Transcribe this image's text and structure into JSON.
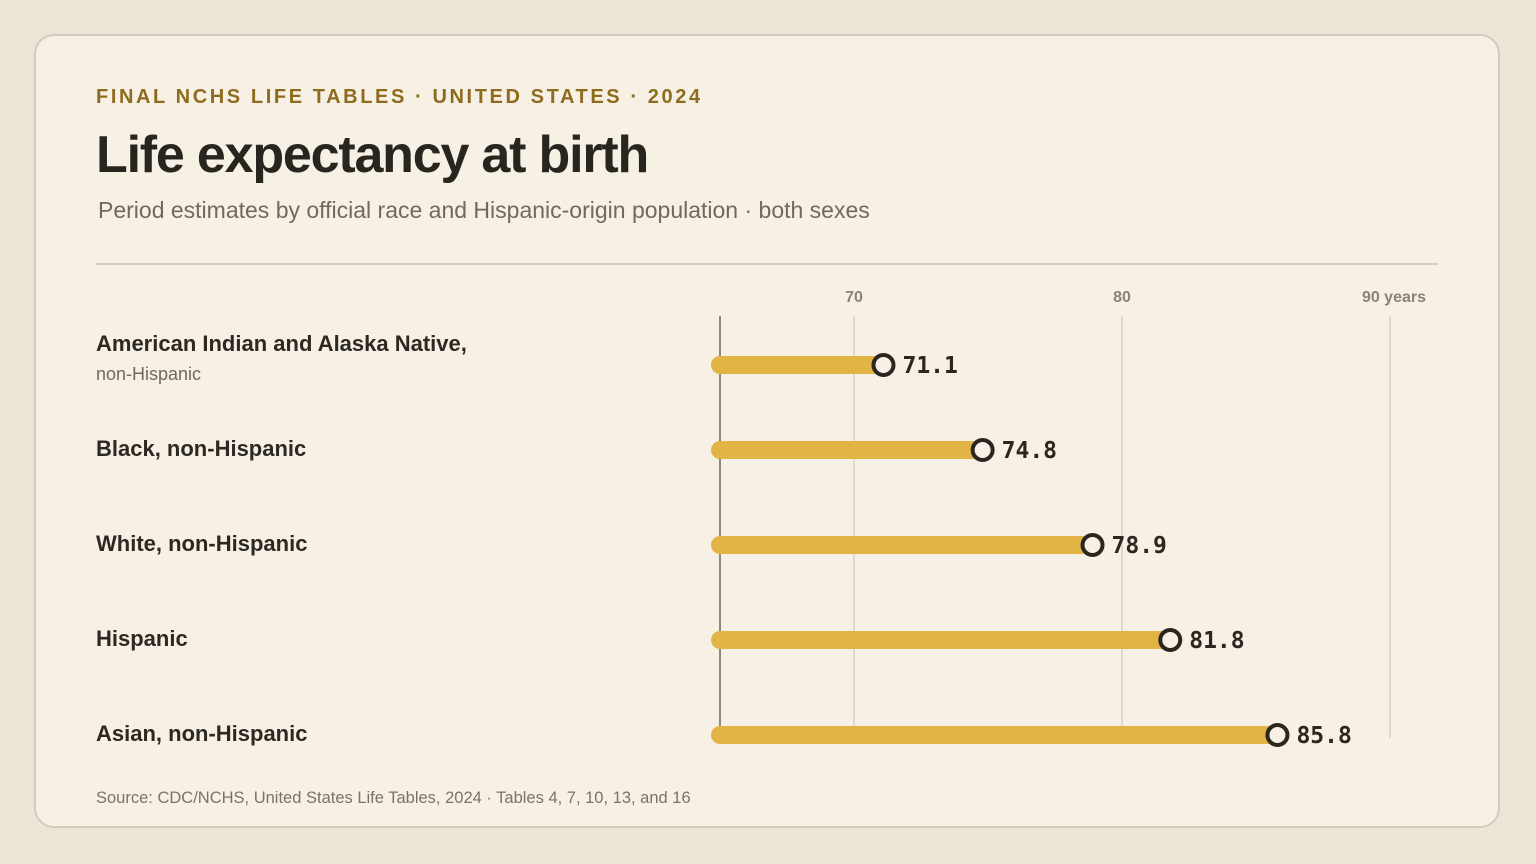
{
  "header": {
    "eyebrow": "FINAL NCHS LIFE TABLES · UNITED STATES · 2024",
    "title": "Life expectancy at birth",
    "subtitle": "Period estimates by official race and Hispanic-origin population · both sexes"
  },
  "source": "Source: CDC/NCHS, United States Life Tables, 2024 · Tables 4, 7, 10, 13, and 16",
  "colors": {
    "bar": "#e2b445",
    "marker_stroke": "#2b2720",
    "marker_fill": "#f6f0e5",
    "gridline": "#d8d1c3",
    "baseline": "#8f897d",
    "value_text": "#2b2720",
    "tick_text": "#8a8478"
  },
  "chart_data": {
    "type": "bar",
    "orientation": "horizontal",
    "categories": [
      "American Indian and Alaska Native,",
      "Black, non-Hispanic",
      "White, non-Hispanic",
      "Hispanic",
      "Asian, non-Hispanic"
    ],
    "category_sublabels": [
      "non-Hispanic",
      "",
      "",
      "",
      ""
    ],
    "values": [
      71.1,
      74.8,
      78.9,
      81.8,
      85.8
    ],
    "value_labels": [
      "71.1",
      "74.8",
      "78.9",
      "81.8",
      "85.8"
    ],
    "xlim": [
      65,
      90
    ],
    "xticks": [
      70,
      80,
      90
    ],
    "xtick_labels": [
      "70",
      "80",
      "90 years"
    ],
    "grid": true
  }
}
